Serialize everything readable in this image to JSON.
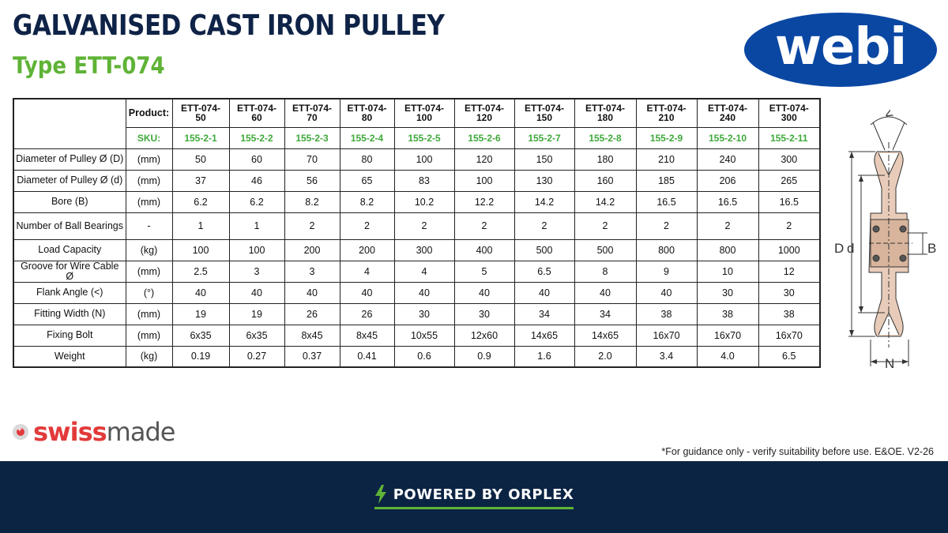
{
  "header": {
    "title": "GALVANISED CAST IRON PULLEY",
    "subtitle": "Type ETT-074",
    "brand": "webi"
  },
  "table": {
    "product_label": "Product:",
    "sku_label": "SKU:",
    "products": [
      {
        "line1": "ETT-074-",
        "line2": "50",
        "sku": "155-2-1"
      },
      {
        "line1": "ETT-074-",
        "line2": "60",
        "sku": "155-2-2"
      },
      {
        "line1": "ETT-074-",
        "line2": "70",
        "sku": "155-2-3"
      },
      {
        "line1": "ETT-074-",
        "line2": "80",
        "sku": "155-2-4"
      },
      {
        "line1": "ETT-074-",
        "line2": "100",
        "sku": "155-2-5"
      },
      {
        "line1": "ETT-074-",
        "line2": "120",
        "sku": "155-2-6"
      },
      {
        "line1": "ETT-074-",
        "line2": "150",
        "sku": "155-2-7"
      },
      {
        "line1": "ETT-074-",
        "line2": "180",
        "sku": "155-2-8"
      },
      {
        "line1": "ETT-074-",
        "line2": "210",
        "sku": "155-2-9"
      },
      {
        "line1": "ETT-074-",
        "line2": "240",
        "sku": "155-2-10"
      },
      {
        "line1": "ETT-074-",
        "line2": "300",
        "sku": "155-2-11"
      }
    ],
    "rows": [
      {
        "label": "Diameter of Pulley Ø (D)",
        "unit": "(mm)",
        "values": [
          "50",
          "60",
          "70",
          "80",
          "100",
          "120",
          "150",
          "180",
          "210",
          "240",
          "300"
        ]
      },
      {
        "label": "Diameter of Pulley Ø (d)",
        "unit": "(mm)",
        "values": [
          "37",
          "46",
          "56",
          "65",
          "83",
          "100",
          "130",
          "160",
          "185",
          "206",
          "265"
        ]
      },
      {
        "label": "Bore (B)",
        "unit": "(mm)",
        "values": [
          "6.2",
          "6.2",
          "8.2",
          "8.2",
          "10.2",
          "12.2",
          "14.2",
          "14.2",
          "16.5",
          "16.5",
          "16.5"
        ]
      },
      {
        "label": "Number of Ball Bearings",
        "unit": "-",
        "values": [
          "1",
          "1",
          "2",
          "2",
          "2",
          "2",
          "2",
          "2",
          "2",
          "2",
          "2"
        ],
        "tall": true
      },
      {
        "label": "Load Capacity",
        "unit": "(kg)",
        "values": [
          "100",
          "100",
          "200",
          "200",
          "300",
          "400",
          "500",
          "500",
          "800",
          "800",
          "1000"
        ]
      },
      {
        "label": "Groove for Wire Cable Ø",
        "unit": "(mm)",
        "values": [
          "2.5",
          "3",
          "3",
          "4",
          "4",
          "5",
          "6.5",
          "8",
          "9",
          "10",
          "12"
        ]
      },
      {
        "label": "Flank Angle (<)",
        "unit": "(°)",
        "values": [
          "40",
          "40",
          "40",
          "40",
          "40",
          "40",
          "40",
          "40",
          "40",
          "30",
          "30"
        ]
      },
      {
        "label": "Fitting Width (N)",
        "unit": "(mm)",
        "values": [
          "19",
          "19",
          "26",
          "26",
          "30",
          "30",
          "34",
          "34",
          "38",
          "38",
          "38"
        ]
      },
      {
        "label": "Fixing Bolt",
        "unit": "(mm)",
        "values": [
          "6x35",
          "6x35",
          "8x45",
          "8x45",
          "10x55",
          "12x60",
          "14x65",
          "14x65",
          "16x70",
          "16x70",
          "16x70"
        ]
      },
      {
        "label": "Weight",
        "unit": "(kg)",
        "values": [
          "0.19",
          "0.27",
          "0.37",
          "0.41",
          "0.6",
          "0.9",
          "1.6",
          "2.0",
          "3.4",
          "4.0",
          "6.5"
        ]
      }
    ]
  },
  "diagram": {
    "labels": {
      "angle": "<",
      "D": "D",
      "d": "d",
      "B": "B",
      "N": "N"
    }
  },
  "swiss": {
    "part1": "swiss",
    "part2": "made"
  },
  "disclaimer": "*For guidance only - verify suitability before use. E&OE.  V2-26",
  "footer": {
    "text": "POWERED BY ORPLEX",
    "bolt_icon": "lightning-bolt-icon",
    "accent": "#5fb336"
  }
}
